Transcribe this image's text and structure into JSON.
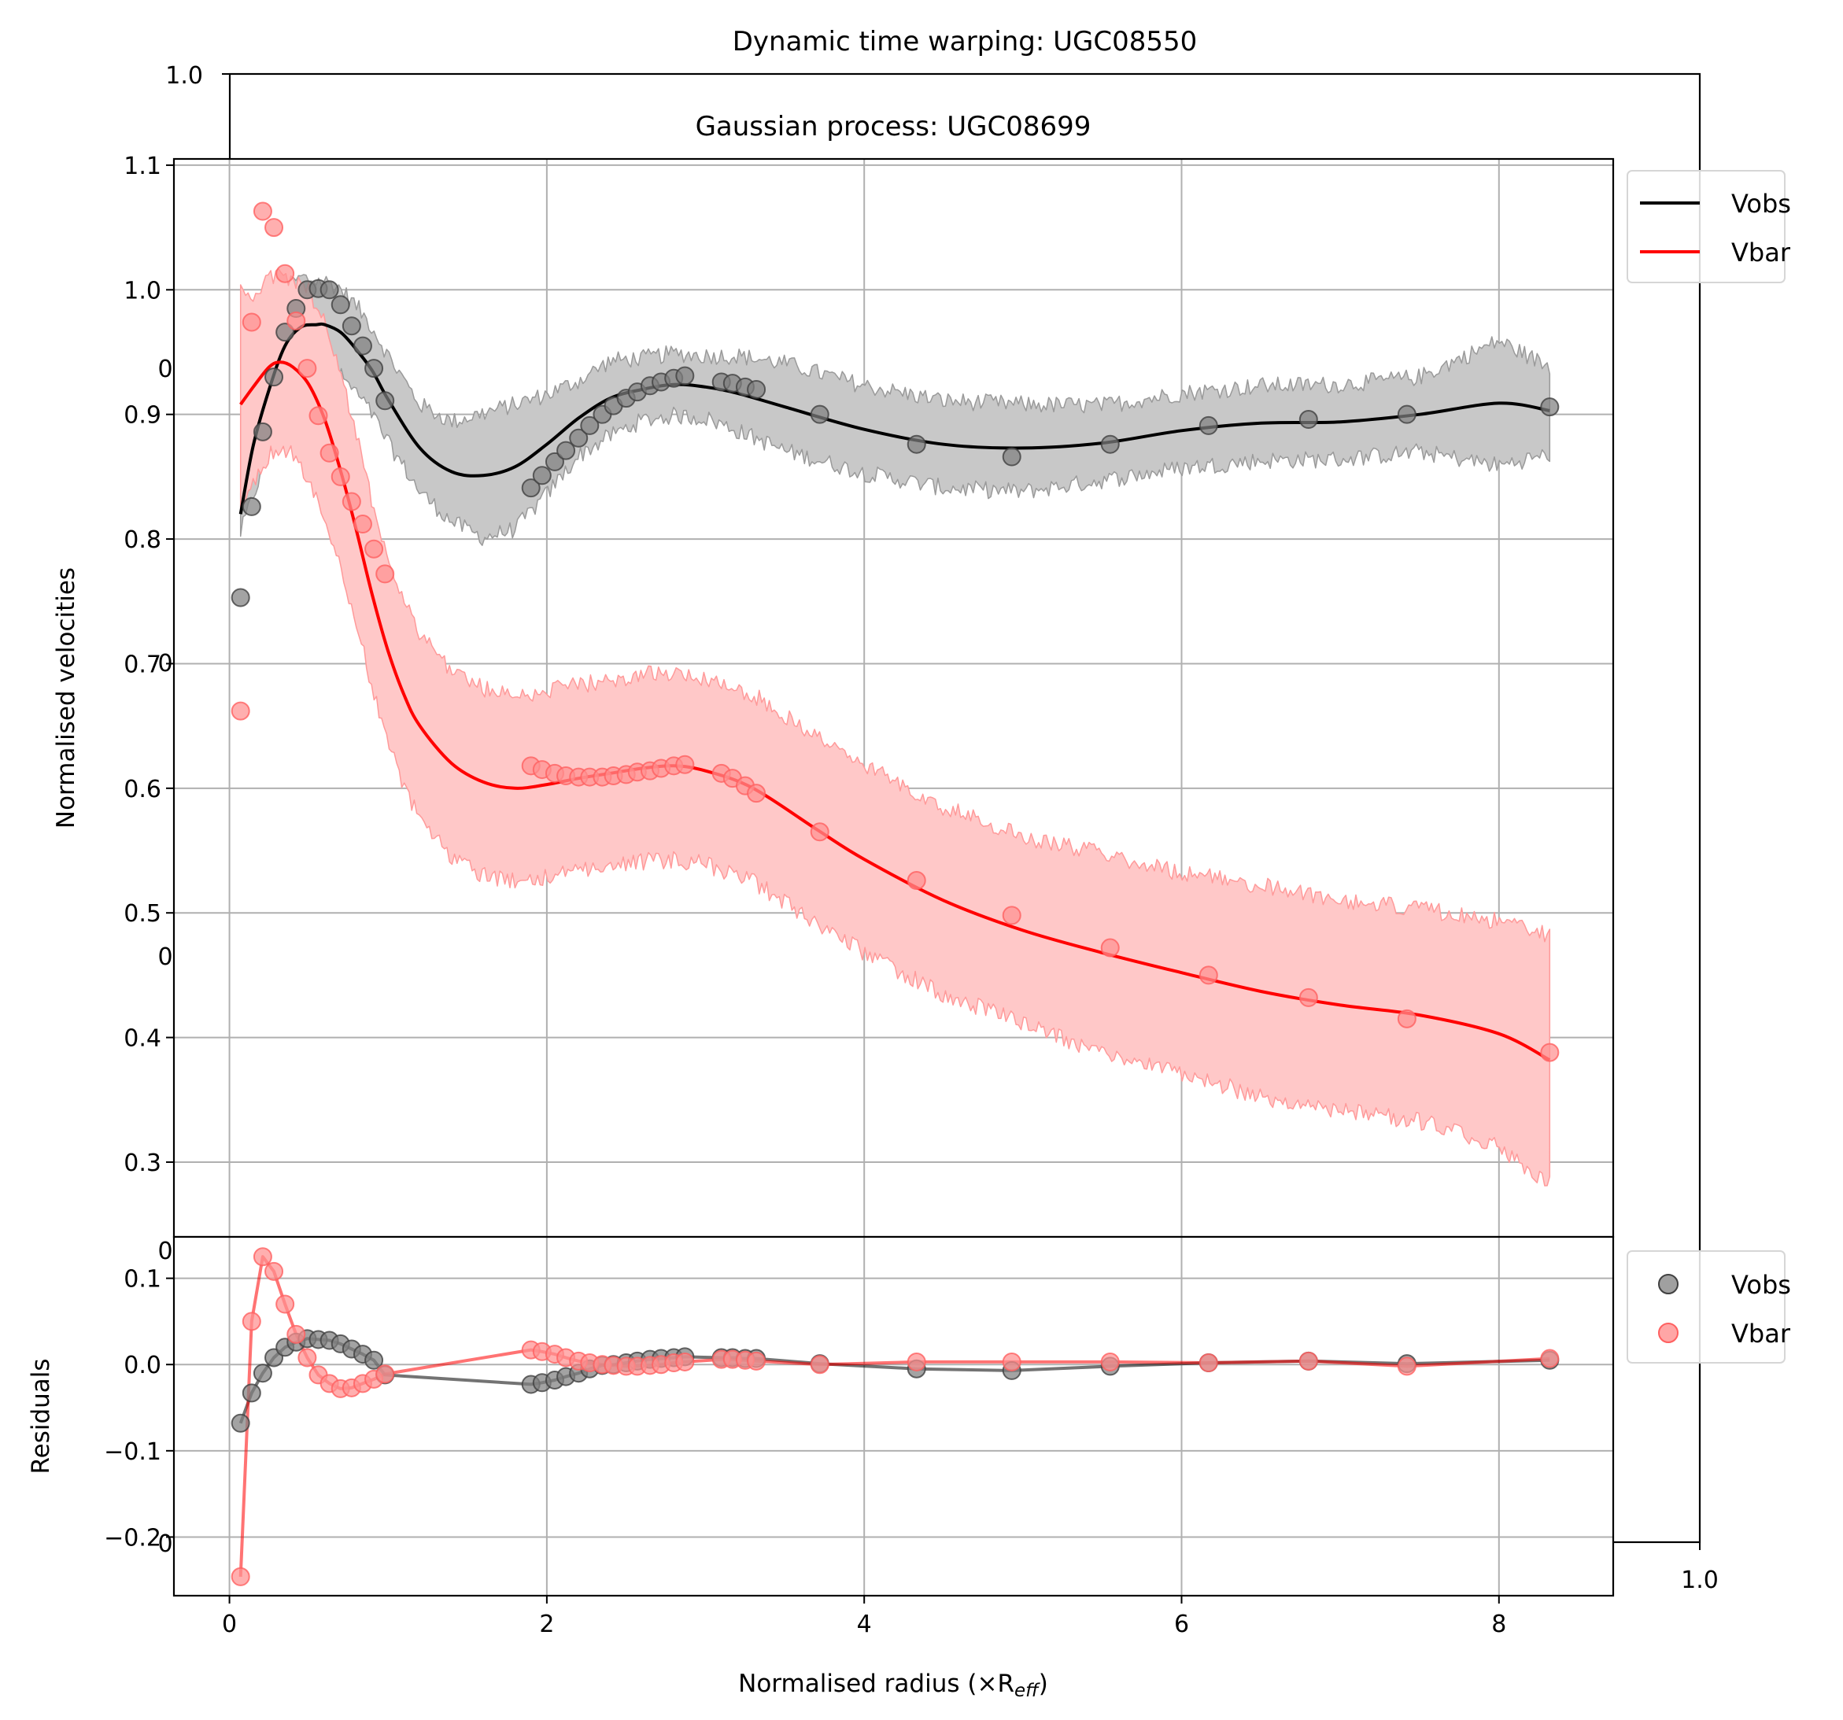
{
  "figure": {
    "back_axes": {
      "title": "Dynamic time warping: UGC08550",
      "top_left_tick": "1.0",
      "bottom_right_tick": "1.0",
      "left_ghost_ticks": [
        "0",
        "0",
        "0",
        "0",
        "0"
      ]
    }
  },
  "chart_data": [
    {
      "type": "line",
      "title": "Gaussian process: UGC08699",
      "xlabel": "",
      "ylabel": "Normalised velocities",
      "xlim": [
        -0.35,
        8.72
      ],
      "ylim": [
        0.24,
        1.105
      ],
      "yticks": [
        "0.3",
        "0.4",
        "0.5",
        "0.6",
        "0.7",
        "0.8",
        "0.9",
        "1.0",
        "1.1"
      ],
      "grid": true,
      "legend": {
        "placement": "outside-right-top",
        "entries": [
          "Vobs",
          "Vbar"
        ]
      },
      "colors": {
        "vobs": "#000000",
        "vbar": "#ff0000",
        "vobs_band": "#c8c8c8",
        "vbar_band": "#ffc8c8"
      },
      "series": [
        {
          "name": "Vobs",
          "line_x": [
            0.07,
            0.15,
            0.25,
            0.35,
            0.45,
            0.55,
            0.6,
            0.7,
            0.8,
            0.9,
            1.0,
            1.2,
            1.4,
            1.6,
            1.8,
            2.0,
            2.2,
            2.4,
            2.6,
            2.8,
            3.0,
            3.2,
            3.5,
            4.0,
            4.5,
            5.0,
            5.5,
            6.0,
            6.5,
            7.0,
            7.5,
            8.0,
            8.32
          ],
          "line_y": [
            0.82,
            0.875,
            0.92,
            0.955,
            0.97,
            0.972,
            0.972,
            0.966,
            0.952,
            0.935,
            0.912,
            0.873,
            0.854,
            0.851,
            0.858,
            0.876,
            0.897,
            0.913,
            0.92,
            0.924,
            0.922,
            0.917,
            0.906,
            0.888,
            0.876,
            0.873,
            0.877,
            0.887,
            0.893,
            0.894,
            0.9,
            0.909,
            0.903
          ],
          "band_halfwidth": [
            0.015,
            0.04,
            0.05,
            0.045,
            0.04,
            0.035,
            0.035,
            0.035,
            0.035,
            0.035,
            0.035,
            0.035,
            0.04,
            0.05,
            0.05,
            0.04,
            0.03,
            0.03,
            0.025,
            0.025,
            0.025,
            0.03,
            0.035,
            0.035,
            0.035,
            0.035,
            0.03,
            0.03,
            0.03,
            0.03,
            0.03,
            0.05,
            0.035
          ],
          "points_x": [
            0.07,
            0.14,
            0.21,
            0.28,
            0.35,
            0.42,
            0.49,
            0.56,
            0.63,
            0.7,
            0.77,
            0.84,
            0.91,
            0.98,
            1.9,
            1.97,
            2.05,
            2.12,
            2.2,
            2.27,
            2.35,
            2.42,
            2.5,
            2.57,
            2.65,
            2.72,
            2.8,
            2.87,
            3.1,
            3.17,
            3.25,
            3.32,
            3.72,
            4.33,
            4.93,
            5.55,
            6.17,
            6.8,
            7.42,
            8.32
          ],
          "points_y": [
            0.753,
            0.826,
            0.886,
            0.93,
            0.966,
            0.985,
            1.0,
            1.001,
            1.0,
            0.988,
            0.971,
            0.955,
            0.937,
            0.911,
            0.841,
            0.851,
            0.862,
            0.871,
            0.881,
            0.891,
            0.9,
            0.907,
            0.913,
            0.918,
            0.923,
            0.926,
            0.929,
            0.931,
            0.926,
            0.925,
            0.922,
            0.92,
            0.9,
            0.876,
            0.866,
            0.876,
            0.891,
            0.896,
            0.9,
            0.906
          ]
        },
        {
          "name": "Vbar",
          "line_x": [
            0.07,
            0.15,
            0.25,
            0.32,
            0.4,
            0.5,
            0.6,
            0.7,
            0.8,
            0.9,
            1.0,
            1.1,
            1.2,
            1.4,
            1.6,
            1.8,
            2.0,
            2.2,
            2.4,
            2.6,
            2.8,
            3.0,
            3.3,
            3.7,
            4.0,
            4.5,
            5.0,
            5.5,
            6.0,
            6.5,
            7.0,
            7.5,
            8.0,
            8.32
          ],
          "line_y": [
            0.908,
            0.922,
            0.938,
            0.942,
            0.938,
            0.924,
            0.896,
            0.855,
            0.807,
            0.755,
            0.71,
            0.675,
            0.65,
            0.62,
            0.605,
            0.6,
            0.603,
            0.608,
            0.612,
            0.616,
            0.618,
            0.614,
            0.6,
            0.567,
            0.543,
            0.51,
            0.486,
            0.468,
            0.452,
            0.437,
            0.426,
            0.418,
            0.403,
            0.382
          ],
          "band_halfwidth": [
            0.09,
            0.075,
            0.07,
            0.07,
            0.07,
            0.075,
            0.08,
            0.08,
            0.075,
            0.075,
            0.075,
            0.075,
            0.075,
            0.075,
            0.075,
            0.075,
            0.075,
            0.075,
            0.075,
            0.075,
            0.075,
            0.075,
            0.075,
            0.075,
            0.075,
            0.075,
            0.075,
            0.08,
            0.08,
            0.085,
            0.085,
            0.085,
            0.09,
            0.1
          ],
          "points_x": [
            0.07,
            0.14,
            0.21,
            0.28,
            0.35,
            0.42,
            0.49,
            0.56,
            0.63,
            0.7,
            0.77,
            0.84,
            0.91,
            0.98,
            1.9,
            1.97,
            2.05,
            2.12,
            2.2,
            2.27,
            2.35,
            2.42,
            2.5,
            2.57,
            2.65,
            2.72,
            2.8,
            2.87,
            3.1,
            3.17,
            3.25,
            3.32,
            3.72,
            4.33,
            4.93,
            5.55,
            6.17,
            6.8,
            7.42,
            8.32
          ],
          "points_y": [
            0.662,
            0.974,
            1.063,
            1.05,
            1.013,
            0.975,
            0.937,
            0.899,
            0.869,
            0.85,
            0.83,
            0.812,
            0.792,
            0.772,
            0.618,
            0.615,
            0.612,
            0.61,
            0.609,
            0.609,
            0.609,
            0.61,
            0.611,
            0.613,
            0.614,
            0.616,
            0.618,
            0.619,
            0.612,
            0.608,
            0.602,
            0.596,
            0.565,
            0.526,
            0.498,
            0.472,
            0.45,
            0.432,
            0.415,
            0.388
          ]
        }
      ]
    },
    {
      "type": "scatter",
      "title": "",
      "xlabel": "Normalised radius (×R",
      "xlabel_sub": "eff",
      "xlabel_close": ")",
      "ylabel": "Residuals",
      "xlim": [
        -0.35,
        8.72
      ],
      "ylim": [
        -0.268,
        0.148
      ],
      "xticks": [
        "0",
        "2",
        "4",
        "6",
        "8"
      ],
      "yticks": [
        "−0.2",
        "−0.1",
        "0.0",
        "0.1"
      ],
      "grid": true,
      "legend": {
        "placement": "outside-right-top",
        "entries": [
          "Vobs",
          "Vbar"
        ]
      },
      "series": [
        {
          "name": "Vobs",
          "x": [
            0.07,
            0.14,
            0.21,
            0.28,
            0.35,
            0.42,
            0.49,
            0.56,
            0.63,
            0.7,
            0.77,
            0.84,
            0.91,
            0.98,
            1.9,
            1.97,
            2.05,
            2.12,
            2.2,
            2.27,
            2.35,
            2.42,
            2.5,
            2.57,
            2.65,
            2.72,
            2.8,
            2.87,
            3.1,
            3.17,
            3.25,
            3.32,
            3.72,
            4.33,
            4.93,
            5.55,
            6.17,
            6.8,
            7.42,
            8.32
          ],
          "y": [
            -0.068,
            -0.033,
            -0.01,
            0.008,
            0.02,
            0.026,
            0.03,
            0.029,
            0.028,
            0.024,
            0.018,
            0.012,
            0.005,
            -0.012,
            -0.023,
            -0.021,
            -0.018,
            -0.014,
            -0.01,
            -0.005,
            -0.001,
            0.0,
            0.002,
            0.004,
            0.006,
            0.007,
            0.008,
            0.009,
            0.008,
            0.008,
            0.007,
            0.007,
            0.001,
            -0.005,
            -0.007,
            -0.002,
            0.002,
            0.004,
            0.001,
            0.005
          ]
        },
        {
          "name": "Vbar",
          "x": [
            0.07,
            0.14,
            0.21,
            0.28,
            0.35,
            0.42,
            0.49,
            0.56,
            0.63,
            0.7,
            0.77,
            0.84,
            0.91,
            0.98,
            1.9,
            1.97,
            2.05,
            2.12,
            2.2,
            2.27,
            2.35,
            2.42,
            2.5,
            2.57,
            2.65,
            2.72,
            2.8,
            2.87,
            3.1,
            3.17,
            3.25,
            3.32,
            3.72,
            4.33,
            4.93,
            5.55,
            6.17,
            6.8,
            7.42,
            8.32
          ],
          "y": [
            -0.246,
            0.05,
            0.125,
            0.108,
            0.07,
            0.035,
            0.008,
            -0.012,
            -0.022,
            -0.028,
            -0.027,
            -0.022,
            -0.017,
            -0.011,
            0.017,
            0.015,
            0.012,
            0.008,
            0.004,
            0.002,
            0.0,
            -0.001,
            -0.002,
            -0.002,
            -0.001,
            0.0,
            0.002,
            0.003,
            0.006,
            0.006,
            0.005,
            0.004,
            0.0,
            0.003,
            0.003,
            0.003,
            0.002,
            0.004,
            -0.002,
            0.007
          ]
        }
      ]
    }
  ]
}
